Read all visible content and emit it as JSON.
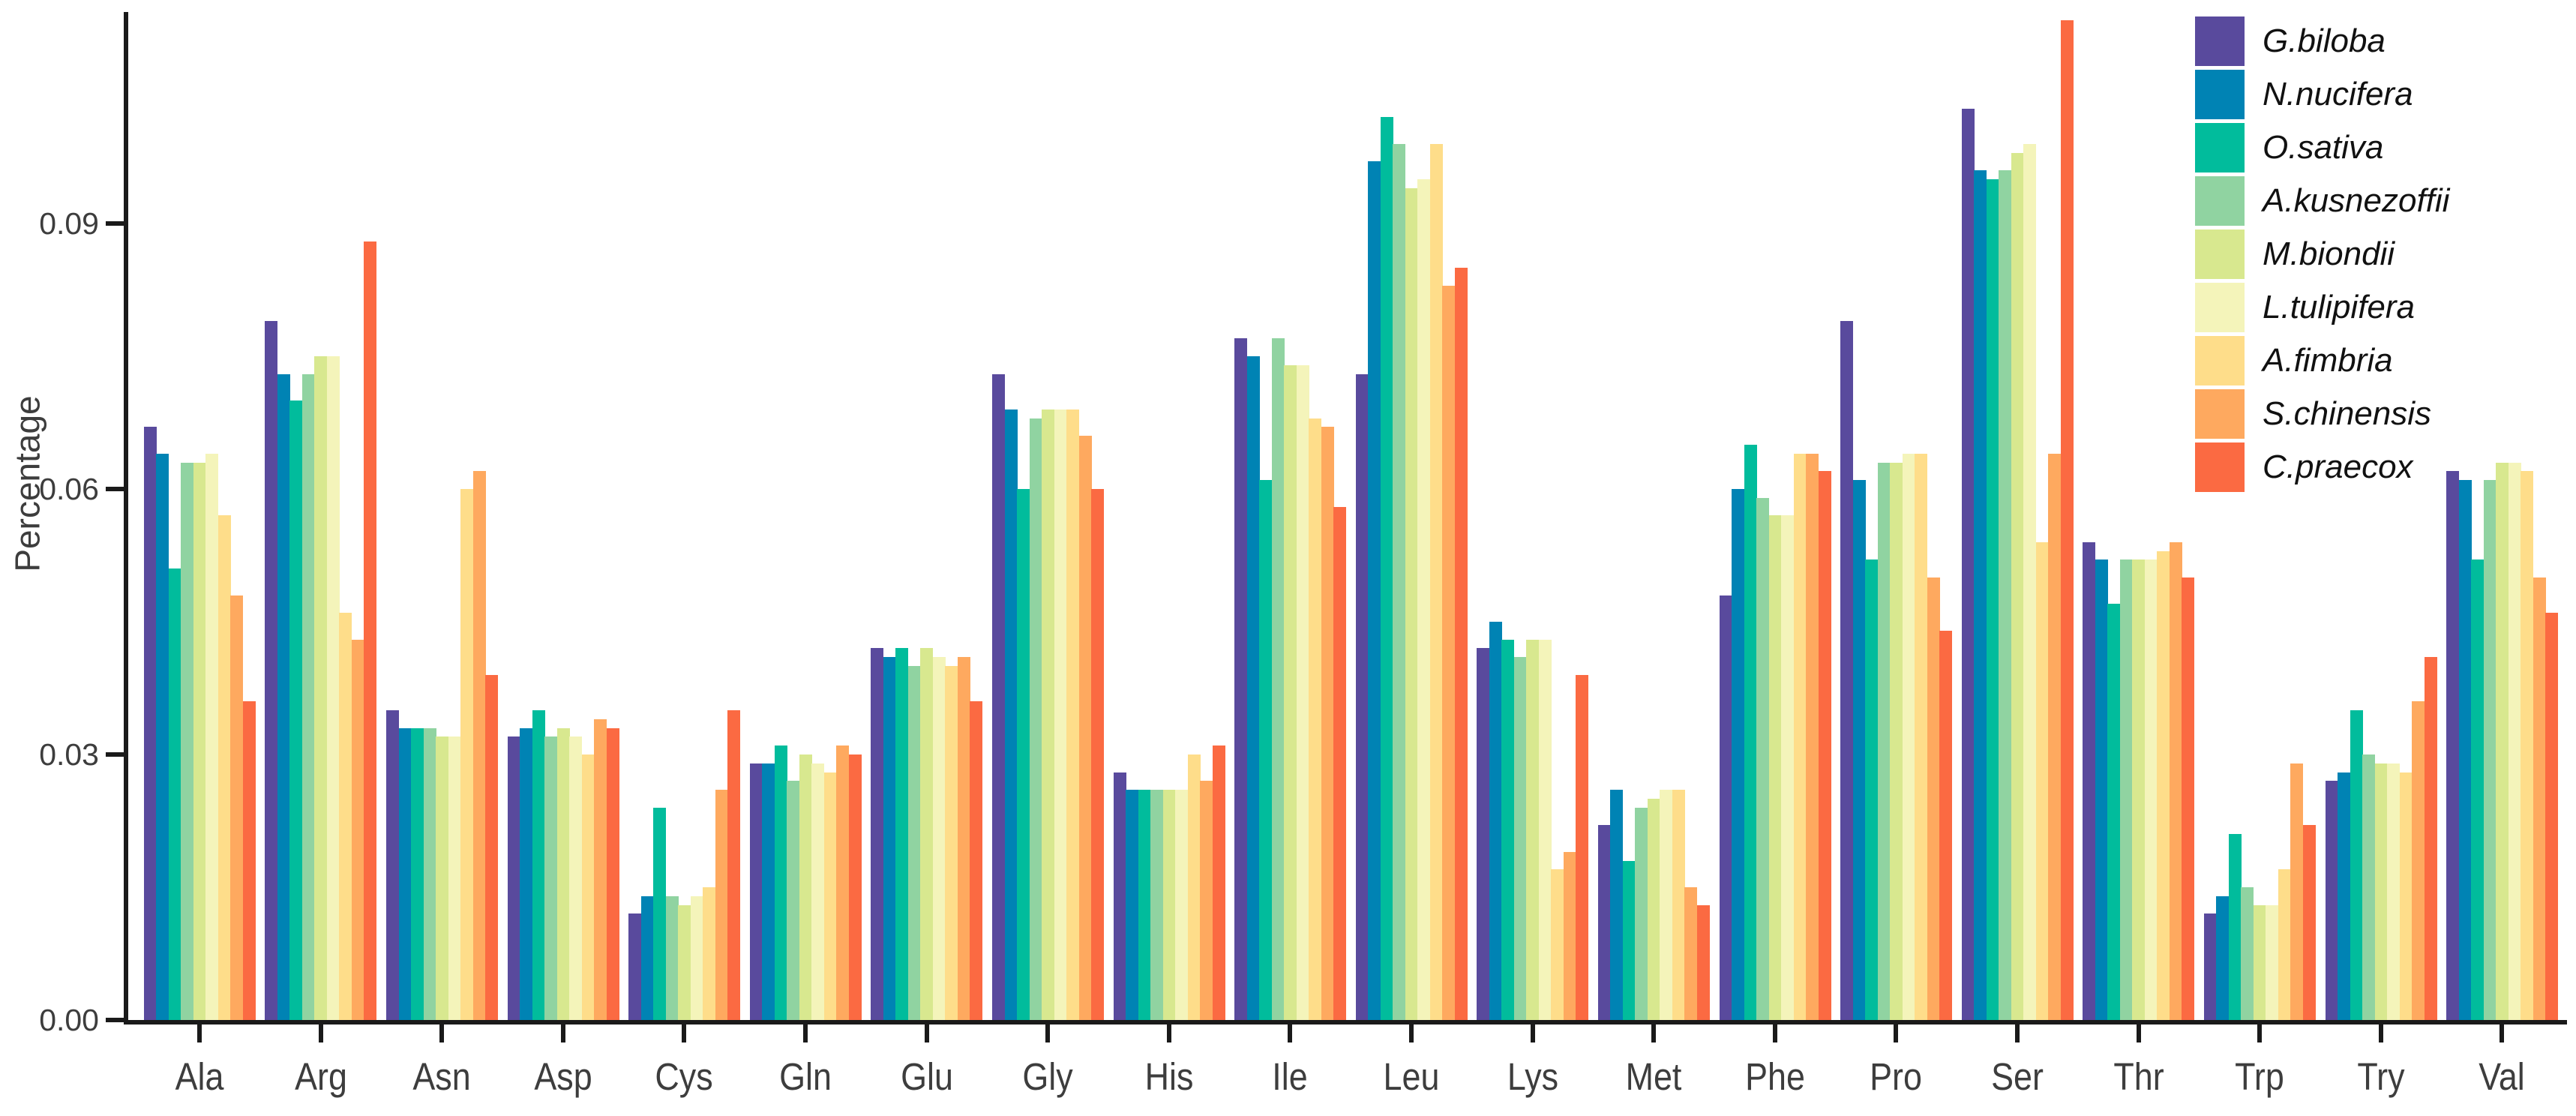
{
  "figure": {
    "ylabel": "Percentage",
    "y_tick_labels": [
      "0.00",
      "0.03",
      "0.06",
      "0.09"
    ],
    "axis_color": "#1a1a1a",
    "tick_text_color": "#3d3d3d"
  },
  "chart_data": {
    "type": "bar",
    "title": "",
    "xlabel": "",
    "ylabel": "Percentage",
    "ylim": [
      0,
      0.1135
    ],
    "y_ticks": [
      0.0,
      0.03,
      0.06,
      0.09
    ],
    "grid": false,
    "legend_position": "top-right",
    "categories": [
      "Ala",
      "Arg",
      "Asn",
      "Asp",
      "Cys",
      "Gln",
      "Glu",
      "Gly",
      "His",
      "Ile",
      "Leu",
      "Lys",
      "Met",
      "Phe",
      "Pro",
      "Ser",
      "Thr",
      "Trp",
      "Try",
      "Val"
    ],
    "series": [
      {
        "name": "G.biloba",
        "color": "#594a9d",
        "values": [
          0.067,
          0.079,
          0.035,
          0.032,
          0.012,
          0.029,
          0.042,
          0.073,
          0.028,
          0.077,
          0.073,
          0.042,
          0.022,
          0.048,
          0.079,
          0.103,
          0.054,
          0.012,
          0.027,
          0.062
        ]
      },
      {
        "name": "N.nucifera",
        "color": "#0083b4",
        "values": [
          0.064,
          0.073,
          0.033,
          0.033,
          0.014,
          0.029,
          0.041,
          0.069,
          0.026,
          0.075,
          0.097,
          0.045,
          0.026,
          0.06,
          0.061,
          0.096,
          0.052,
          0.014,
          0.028,
          0.061
        ]
      },
      {
        "name": "O.sativa",
        "color": "#01bc9c",
        "values": [
          0.051,
          0.07,
          0.033,
          0.035,
          0.024,
          0.031,
          0.042,
          0.06,
          0.026,
          0.061,
          0.102,
          0.043,
          0.018,
          0.065,
          0.052,
          0.095,
          0.047,
          0.021,
          0.035,
          0.052
        ]
      },
      {
        "name": "A.kusnezoffii",
        "color": "#90d3a1",
        "values": [
          0.063,
          0.073,
          0.033,
          0.032,
          0.014,
          0.027,
          0.04,
          0.068,
          0.026,
          0.077,
          0.099,
          0.041,
          0.024,
          0.059,
          0.063,
          0.096,
          0.052,
          0.015,
          0.03,
          0.061
        ]
      },
      {
        "name": "M.biondii",
        "color": "#d8e88f",
        "values": [
          0.063,
          0.075,
          0.032,
          0.033,
          0.013,
          0.03,
          0.042,
          0.069,
          0.026,
          0.074,
          0.094,
          0.043,
          0.025,
          0.057,
          0.063,
          0.098,
          0.052,
          0.013,
          0.029,
          0.063
        ]
      },
      {
        "name": "L.tulipifera",
        "color": "#f4f4ba",
        "values": [
          0.064,
          0.075,
          0.032,
          0.032,
          0.014,
          0.029,
          0.041,
          0.069,
          0.026,
          0.074,
          0.095,
          0.043,
          0.026,
          0.057,
          0.064,
          0.099,
          0.052,
          0.013,
          0.029,
          0.063
        ]
      },
      {
        "name": "A.fimbria",
        "color": "#fedd8a",
        "values": [
          0.057,
          0.046,
          0.06,
          0.03,
          0.015,
          0.028,
          0.04,
          0.069,
          0.03,
          0.068,
          0.099,
          0.017,
          0.026,
          0.064,
          0.064,
          0.054,
          0.053,
          0.017,
          0.028,
          0.062
        ]
      },
      {
        "name": "S.chinensis",
        "color": "#fea95f",
        "values": [
          0.048,
          0.043,
          0.062,
          0.034,
          0.026,
          0.031,
          0.041,
          0.066,
          0.027,
          0.067,
          0.083,
          0.019,
          0.015,
          0.064,
          0.05,
          0.064,
          0.054,
          0.029,
          0.036,
          0.05
        ]
      },
      {
        "name": "C.praecox",
        "color": "#fb6a42",
        "values": [
          0.036,
          0.088,
          0.039,
          0.033,
          0.035,
          0.03,
          0.036,
          0.06,
          0.031,
          0.058,
          0.085,
          0.039,
          0.013,
          0.062,
          0.044,
          0.113,
          0.05,
          0.022,
          0.041,
          0.046
        ]
      }
    ]
  }
}
